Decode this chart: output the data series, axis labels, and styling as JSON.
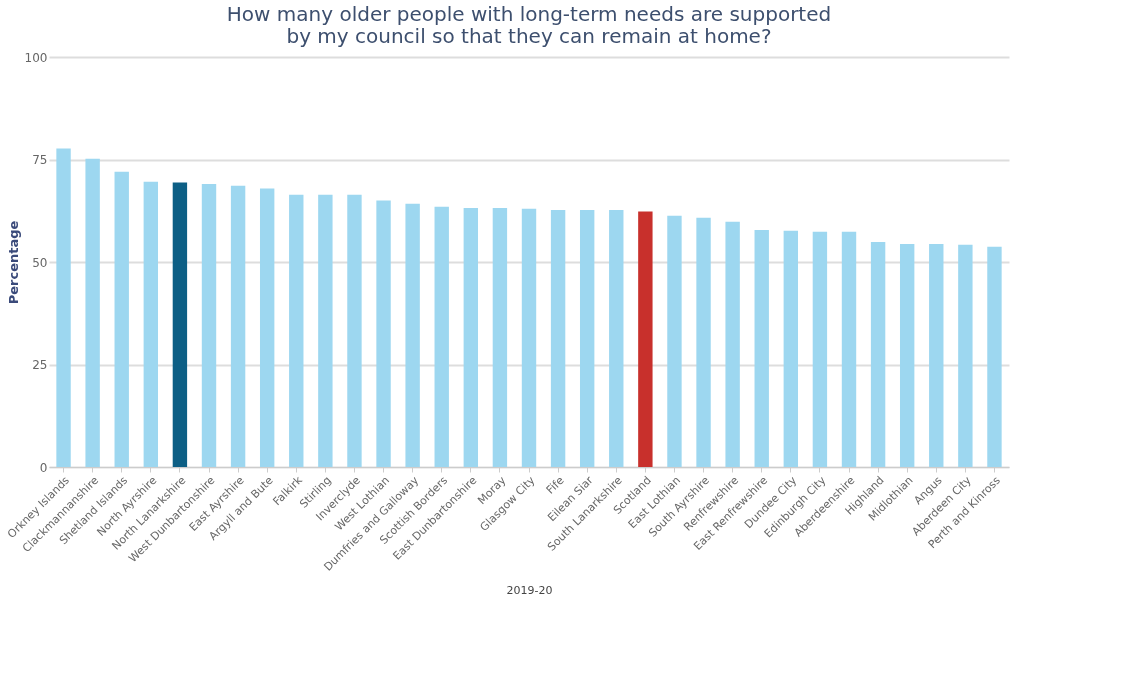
{
  "chart_data": {
    "type": "bar",
    "title": "How many older people with long-term needs are supported by my council so that they can remain at home?",
    "xlabel": "2019-20",
    "ylabel": "Percentage",
    "categories": [
      "Orkney Islands",
      "Clackmannanshire",
      "Shetland Islands",
      "North Ayrshire",
      "North Lanarkshire",
      "West Dunbartonshire",
      "East Ayrshire",
      "Argyll and Bute",
      "Falkirk",
      "Stirling",
      "Inverclyde",
      "West Lothian",
      "Dumfries and Galloway",
      "Scottish Borders",
      "East Dunbartonshire",
      "Moray",
      "Glasgow City",
      "Fife",
      "Eilean Siar",
      "South Lanarkshire",
      "Scotland",
      "East Lothian",
      "South Ayrshire",
      "Renfrewshire",
      "East Renfrewshire",
      "Dundee City",
      "Edinburgh City",
      "Aberdeenshire",
      "Highland",
      "Midlothian",
      "Angus",
      "Aberdeen City",
      "Perth and Kinross"
    ],
    "values": [
      77.7,
      75.2,
      72,
      69.6,
      69.4,
      69,
      68.6,
      67.9,
      66.4,
      66.4,
      66.4,
      65,
      64.2,
      63.5,
      63.2,
      63.2,
      63,
      62.7,
      62.7,
      62.7,
      62.3,
      61.3,
      60.8,
      59.8,
      57.8,
      57.6,
      57.4,
      57.4,
      54.9,
      54.4,
      54.4,
      54.2,
      53.7
    ],
    "colors": [
      "#9dd7f0",
      "#9dd7f0",
      "#9dd7f0",
      "#9dd7f0",
      "#0d5f85",
      "#9dd7f0",
      "#9dd7f0",
      "#9dd7f0",
      "#9dd7f0",
      "#9dd7f0",
      "#9dd7f0",
      "#9dd7f0",
      "#9dd7f0",
      "#9dd7f0",
      "#9dd7f0",
      "#9dd7f0",
      "#9dd7f0",
      "#9dd7f0",
      "#9dd7f0",
      "#9dd7f0",
      "#c8302c",
      "#9dd7f0",
      "#9dd7f0",
      "#9dd7f0",
      "#9dd7f0",
      "#9dd7f0",
      "#9dd7f0",
      "#9dd7f0",
      "#9dd7f0",
      "#9dd7f0",
      "#9dd7f0",
      "#9dd7f0",
      "#9dd7f0"
    ],
    "ylim": [
      0,
      100
    ],
    "yticks": [
      0,
      25,
      50,
      75,
      100
    ],
    "grid": "y"
  }
}
